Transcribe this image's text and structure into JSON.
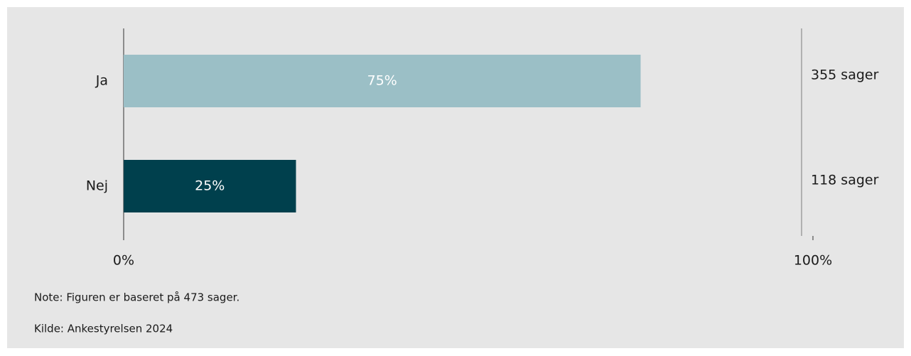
{
  "chart_data": {
    "type": "hbar",
    "categories": [
      "Ja",
      "Nej"
    ],
    "values": [
      75,
      25
    ],
    "value_labels": [
      "75%",
      "25%"
    ],
    "colors": [
      "#9bbfc6",
      "#00404d"
    ],
    "annotations": [
      "355 sager",
      "118 sager"
    ],
    "xlim": [
      0,
      100
    ],
    "xticks": [
      {
        "value": 0,
        "label": "0%"
      },
      {
        "value": 100,
        "label": "100%"
      }
    ],
    "note": "Note:  Figuren er baseret på 473 sager.",
    "source": "Kilde:  Ankestyrelsen 2024"
  }
}
